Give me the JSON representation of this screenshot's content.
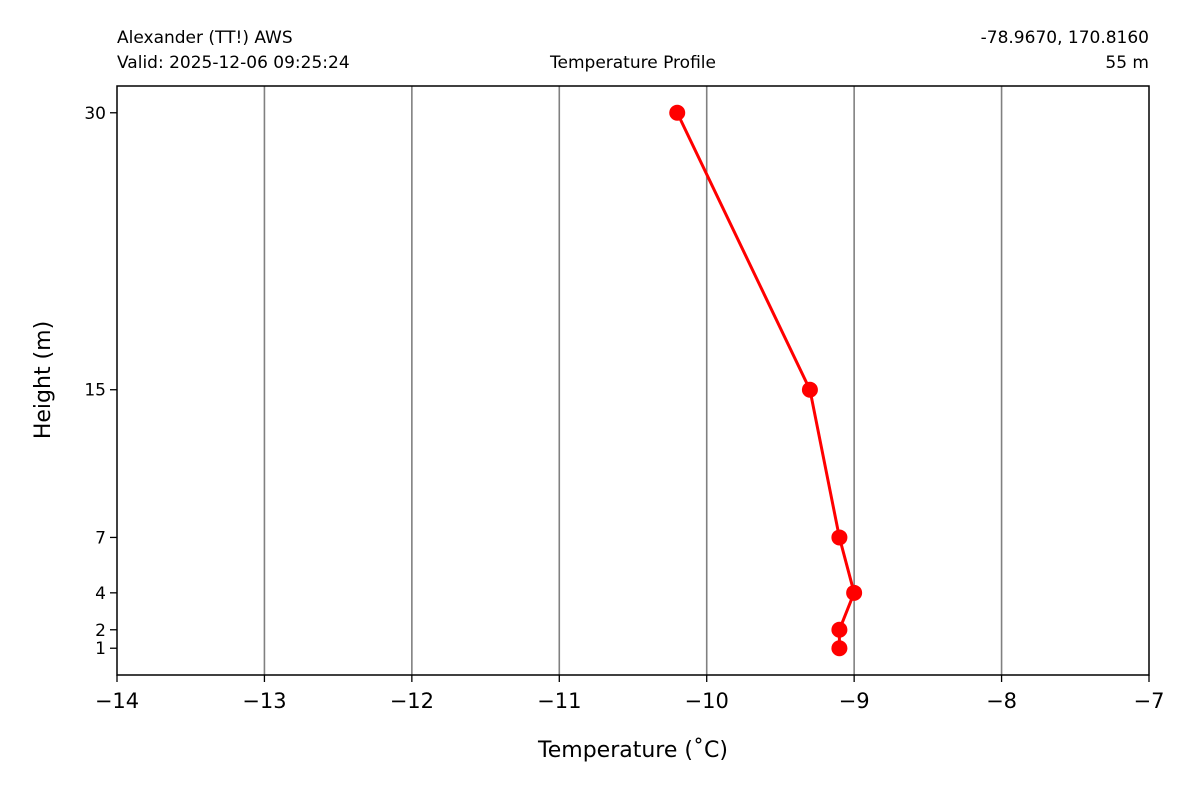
{
  "header": {
    "station": "Alexander (TT!) AWS",
    "valid": "Valid: 2025-12-06 09:25:24",
    "coords": "-78.9670, 170.8160",
    "elevation": "55 m"
  },
  "chart_data": {
    "type": "line",
    "title": "Temperature Profile",
    "xlabel": "Temperature ($^\\circ$C)",
    "xlabel_display": "Temperature (˚C)",
    "ylabel": "Height (m)",
    "xlim": [
      -14,
      -7
    ],
    "ylim": [
      -0.45,
      31.45
    ],
    "xticks": [
      -14,
      -13,
      -12,
      -11,
      -10,
      -9,
      -8,
      -7
    ],
    "xtick_labels": [
      "−14",
      "−13",
      "−12",
      "−11",
      "−10",
      "−9",
      "−8",
      "−7"
    ],
    "yticks": [
      1,
      2,
      4,
      7,
      15,
      30
    ],
    "ytick_labels": [
      "1",
      "2",
      "4",
      "7",
      "15",
      "30"
    ],
    "grid": "x-major",
    "series": [
      {
        "name": "Temperature",
        "color": "#ff0000",
        "marker": "circle",
        "x": [
          -10.2,
          -9.3,
          -9.1,
          -9.0,
          -9.1,
          -9.1
        ],
        "y": [
          30,
          15,
          7,
          4,
          2,
          1
        ]
      }
    ]
  }
}
